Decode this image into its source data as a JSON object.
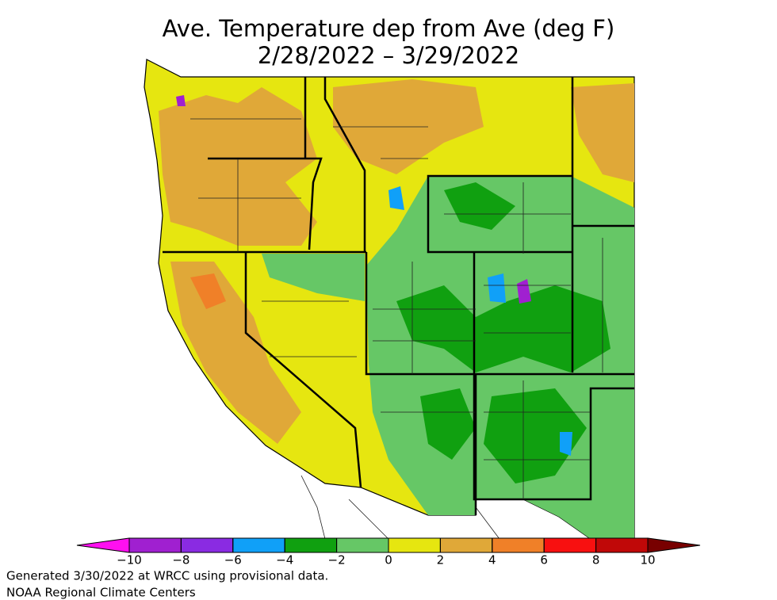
{
  "title": {
    "line1": "Ave. Temperature dep from Ave (deg F)",
    "line2": "2/28/2022 – 3/29/2022"
  },
  "colorbar": {
    "ticks": [
      {
        "value": -10,
        "label": "−10"
      },
      {
        "value": -8,
        "label": "−8"
      },
      {
        "value": -6,
        "label": "−6"
      },
      {
        "value": -4,
        "label": "−4"
      },
      {
        "value": -2,
        "label": "−2"
      },
      0,
      2,
      4,
      6,
      8,
      10
    ],
    "colors": [
      "#ff10f0",
      "#a020d0",
      "#8a2be2",
      "#10a0f8",
      "#10a010",
      "#66c766",
      "#e6e610",
      "#e0a838",
      "#f08028",
      "#f81010",
      "#c00808",
      "#780000"
    ]
  },
  "footer": {
    "line1": "Generated 3/30/2022 at WRCC using provisional data.",
    "line2": "NOAA Regional Climate Centers"
  }
}
